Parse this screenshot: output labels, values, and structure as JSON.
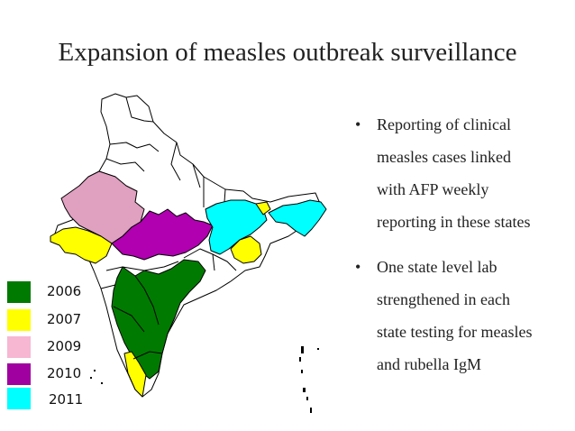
{
  "title": "Expansion of measles outbreak surveillance",
  "colors": {
    "2006": "#007a00",
    "2007": "#ffff00",
    "2009": "#e0a0c0",
    "2010": "#b000b0",
    "2011": "#00ffff",
    "outline": "#000000"
  },
  "legend": [
    {
      "label": "2006",
      "color": "#007a00"
    },
    {
      "label": "2007",
      "color": "#ffff00"
    },
    {
      "label": "2009",
      "color": "#f7b7d2"
    },
    {
      "label": "2010",
      "color": "#a000a0"
    },
    {
      "label": "2011",
      "color": "#00ffff"
    }
  ],
  "bullets": [
    {
      "lines": [
        "Reporting of clinical",
        "measles cases linked",
        "with AFP weekly",
        "reporting in these states"
      ]
    },
    {
      "lines": [
        "One state level lab",
        "strengthened in each",
        "state testing for measles",
        "and rubella IgM"
      ]
    }
  ]
}
